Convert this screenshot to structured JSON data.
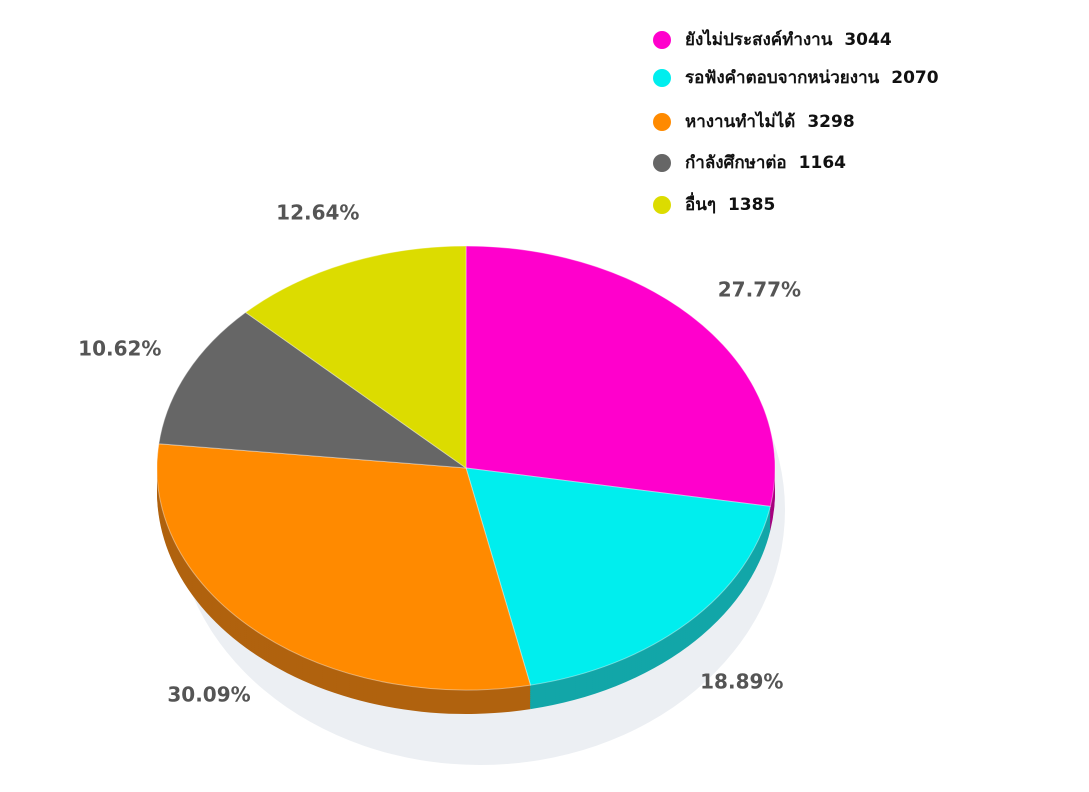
{
  "chart_data": {
    "type": "pie",
    "categories": [
      "ยังไม่ประสงค์ทำงาน",
      "รอฟังคำตอบจากหน่วยงาน",
      "หางานทำไม่ได้",
      "กำลังศึกษาต่อ",
      "อื่นๆ"
    ],
    "counts": [
      3044,
      2070,
      3298,
      1164,
      1385
    ],
    "values": [
      27.77,
      18.89,
      30.09,
      10.62,
      12.64
    ],
    "value_labels": [
      "27.77%",
      "18.89%",
      "30.09%",
      "10.62%",
      "12.64%"
    ],
    "colors": [
      "#ff00cc",
      "#00eeee",
      "#ff8a00",
      "#666666",
      "#dcdc00"
    ],
    "side_colors": [
      "#a8007f",
      "#12a6a8",
      "#b0620e",
      "#444444",
      "#9a9a00"
    ],
    "legend": "top-right"
  }
}
